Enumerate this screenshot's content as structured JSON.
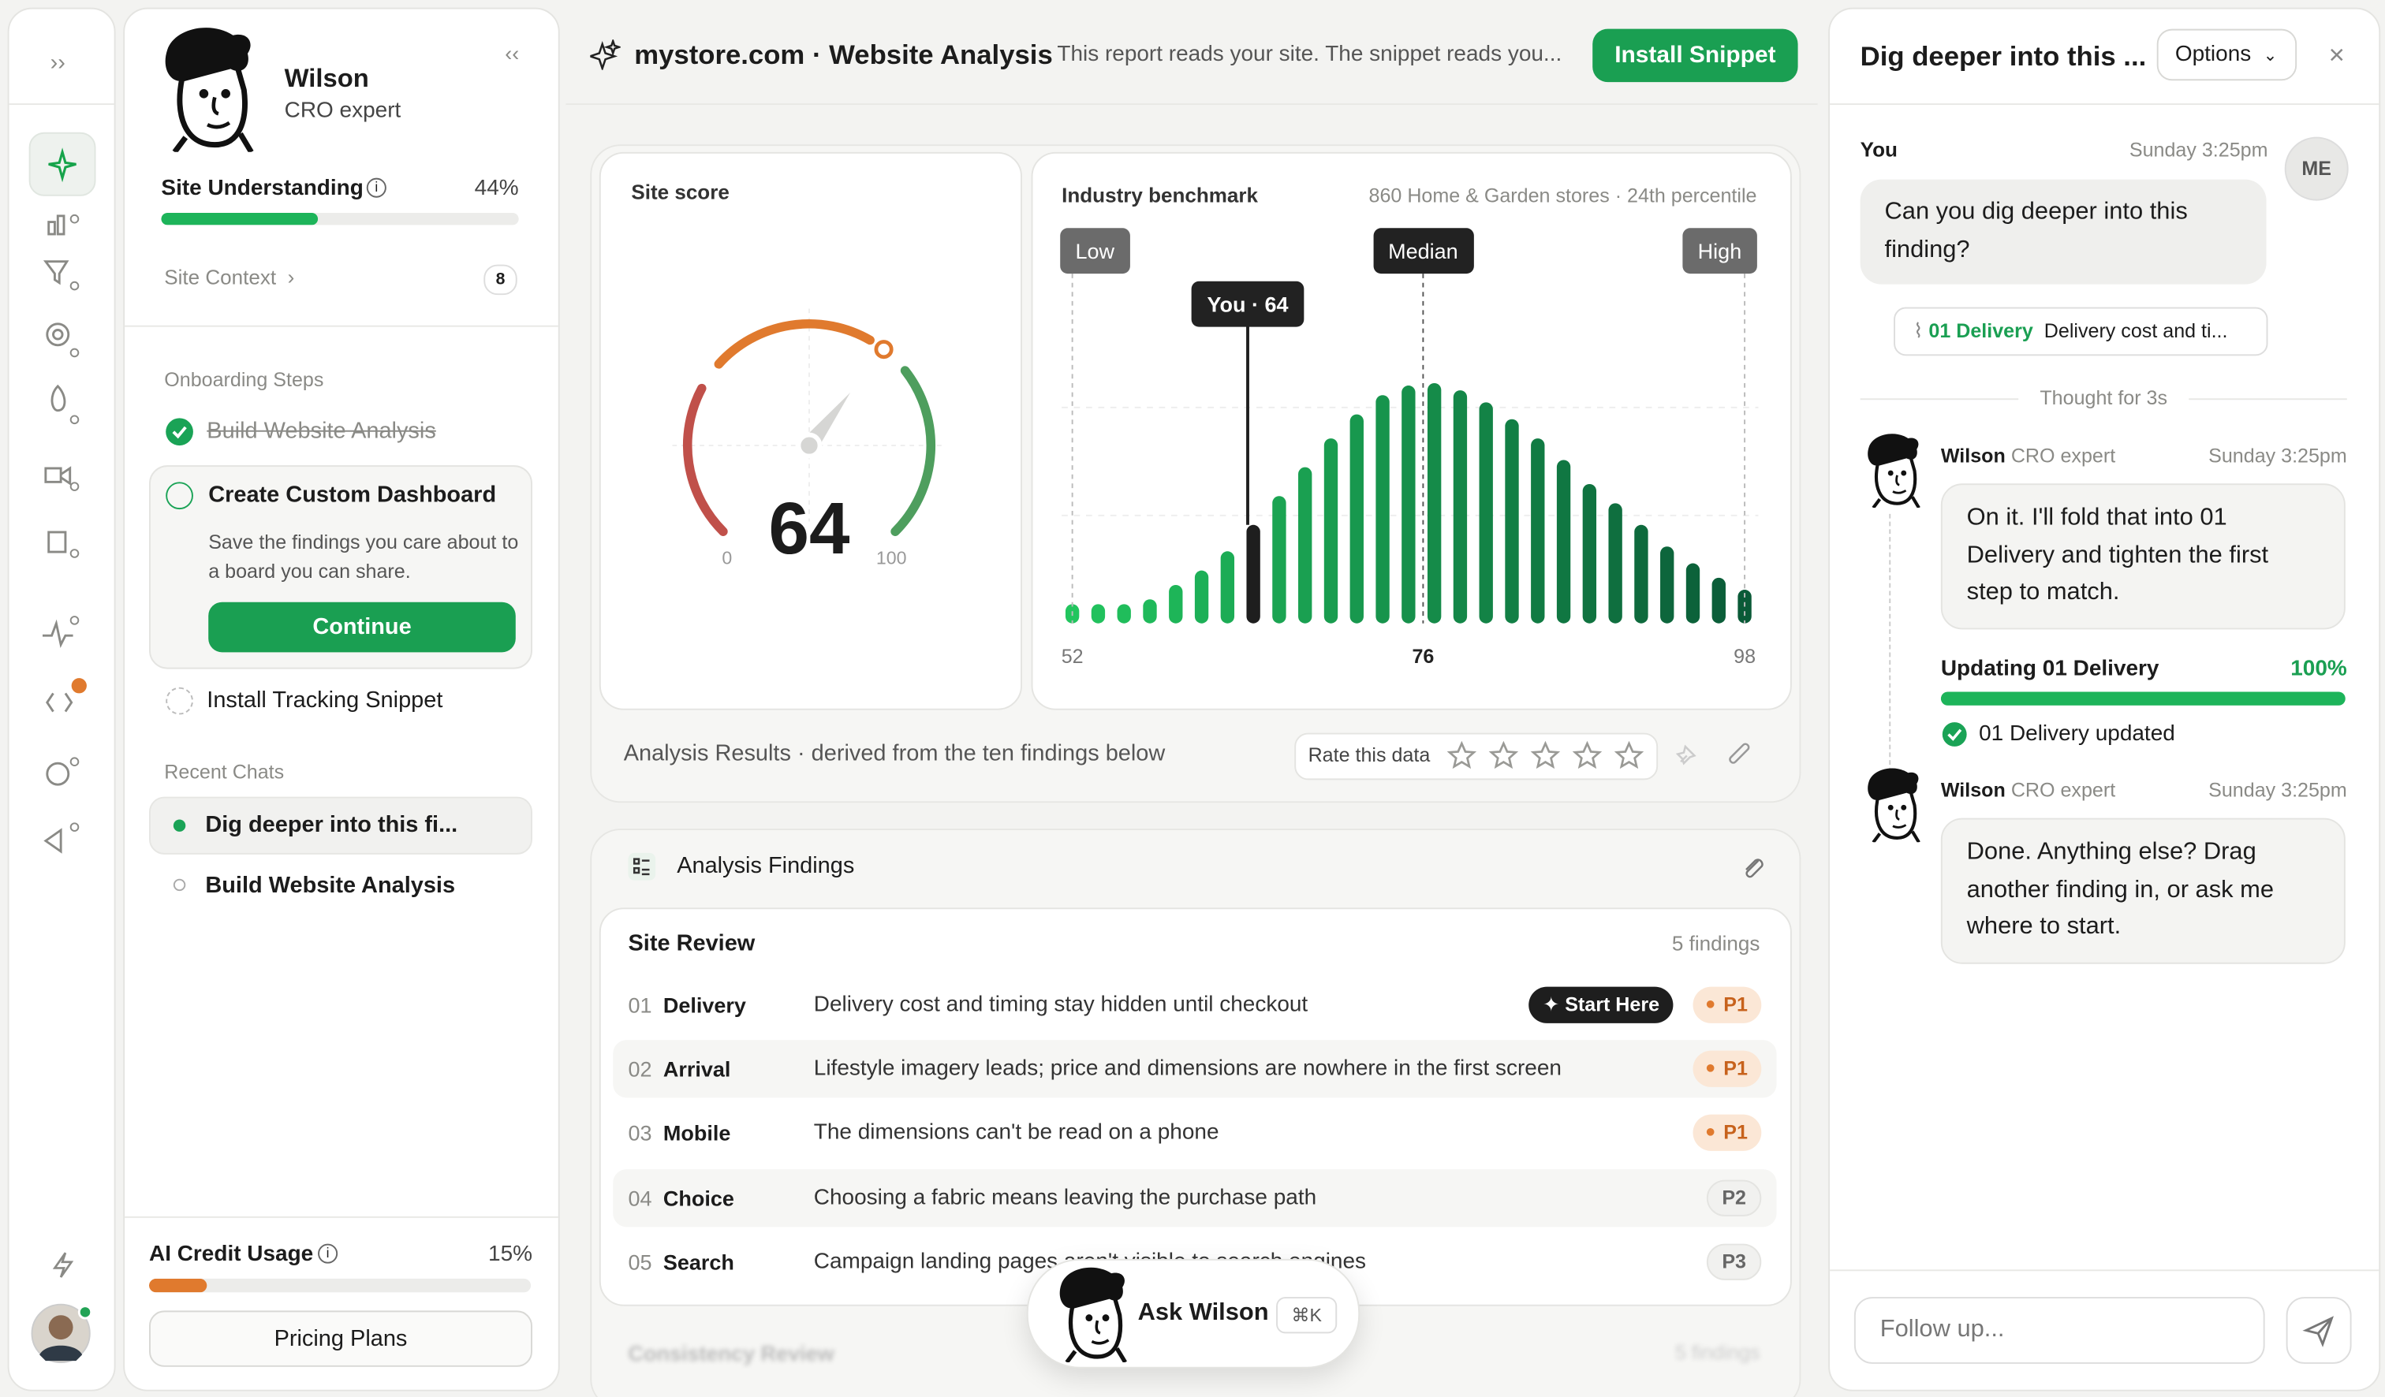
{
  "sidebar": {
    "agent_name": "Wilson",
    "agent_role": "CRO expert",
    "site_understanding": {
      "label": "Site Understanding",
      "value": 44,
      "value_label": "44%"
    },
    "site_context": {
      "label": "Site Context",
      "count": 8
    },
    "onboarding": {
      "heading": "Onboarding Steps",
      "steps": [
        {
          "label": "Build Website Analysis"
        },
        {
          "label": "Create Custom Dashboard",
          "description": "Save the findings you care about to a board you can share.",
          "button": "Continue"
        },
        {
          "label": "Install Tracking Snippet"
        }
      ]
    },
    "recent_chats": {
      "heading": "Recent Chats",
      "items": [
        "Dig deeper into this fi...",
        "Build Website Analysis"
      ]
    },
    "credit": {
      "label": "AI Credit Usage",
      "value": 15,
      "value_label": "15%"
    },
    "pricing": "Pricing Plans"
  },
  "header": {
    "title": "mystore.com · Website Analysis",
    "subtitle": "This report reads your site. The snippet reads you...",
    "button": "Install Snippet"
  },
  "score": {
    "title": "Site score",
    "value": 64,
    "min": 0,
    "max": 100
  },
  "benchmark": {
    "title": "Industry benchmark",
    "subtitle": "860 Home & Garden stores · 24th percentile",
    "low": "Low",
    "median": "Median",
    "high": "High",
    "you_label": "You · 64",
    "you": 64,
    "xlim": [
      52,
      98
    ],
    "xticks": [
      52,
      76,
      98
    ],
    "ylim": [
      0,
      100
    ],
    "values": [
      8,
      8,
      8,
      10,
      16,
      22,
      30,
      41,
      53,
      65,
      77,
      87,
      95,
      99,
      100,
      97,
      92,
      85,
      77,
      68,
      58,
      50,
      41,
      32,
      25,
      19,
      14
    ]
  },
  "analysis": {
    "caption": "Analysis Results · derived from the ten findings below",
    "rate": "Rate this data"
  },
  "findings": {
    "title": "Analysis Findings",
    "groups": [
      {
        "title": "Site Review",
        "count": "5 findings",
        "rows": [
          {
            "num": "01",
            "name": "Delivery",
            "text": "Delivery cost and timing stay hidden until checkout",
            "badge": "Start Here",
            "priority": "P1"
          },
          {
            "num": "02",
            "name": "Arrival",
            "text": "Lifestyle imagery leads; price and dimensions are nowhere in the first screen",
            "priority": "P1"
          },
          {
            "num": "03",
            "name": "Mobile",
            "text": "The dimensions can't be read on a phone",
            "priority": "P1"
          },
          {
            "num": "04",
            "name": "Choice",
            "text": "Choosing a fabric means leaving the purchase path",
            "priority": "P2"
          },
          {
            "num": "05",
            "name": "Search",
            "text": "Campaign landing pages aren't visible to search engines",
            "priority": "P3"
          }
        ]
      },
      {
        "title": "Consistency Review",
        "count": "5 findings"
      }
    ]
  },
  "ask": {
    "label": "Ask Wilson",
    "shortcut": "⌘K"
  },
  "chat": {
    "title": "Dig deeper into this ...",
    "options": "Options",
    "m1": {
      "author": "You",
      "time": "Sunday 3:25pm",
      "avatar": "ME",
      "text": "Can you dig deeper into this finding?",
      "tag": "01 Delivery",
      "attachment": "Delivery cost and ti..."
    },
    "thought": "Thought for 3s",
    "m2": {
      "author": "Wilson",
      "role": "CRO expert",
      "time": "Sunday 3:25pm",
      "text": "On it. I'll fold that into 01 Delivery and tighten the first step to match."
    },
    "progress": {
      "label": "Updating 01 Delivery",
      "value": 100,
      "value_label": "100%",
      "status": "01 Delivery updated"
    },
    "m3": {
      "author": "Wilson",
      "role": "CRO expert",
      "time": "Sunday 3:25pm",
      "text": "Done. Anything else? Drag another finding in, or ask me where to start."
    },
    "placeholder": "Follow up..."
  }
}
